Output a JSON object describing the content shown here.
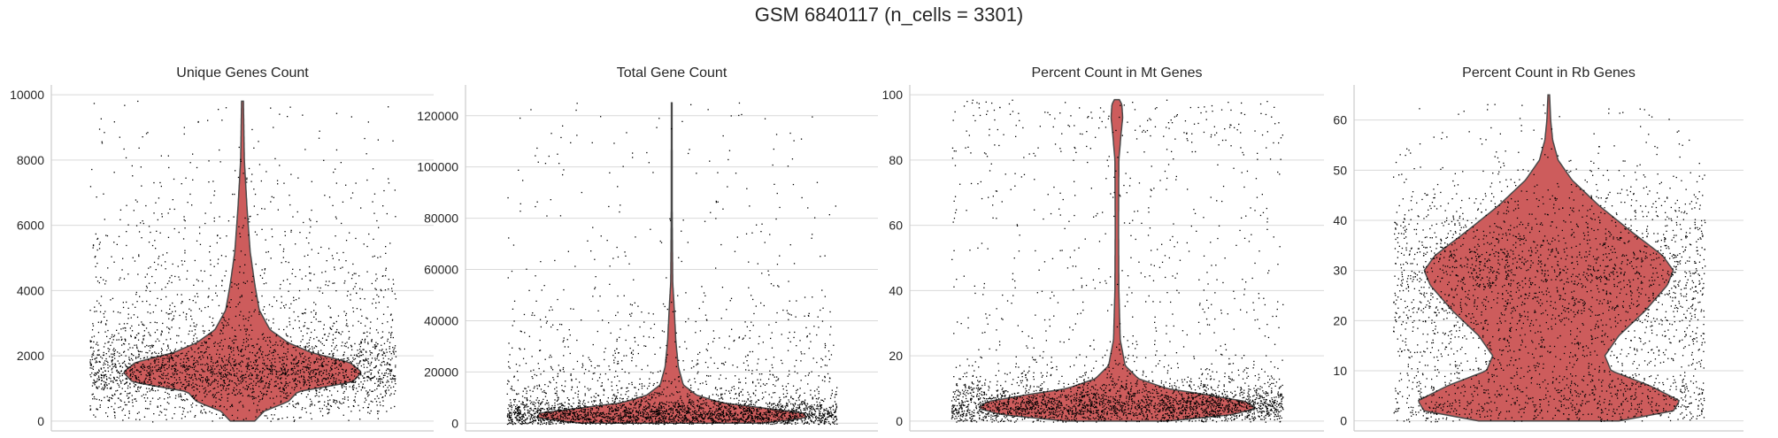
{
  "figure": {
    "title": "GSM 6840117 (n_cells = 3301)"
  },
  "colors": {
    "violin_fill": "#cd5c5c",
    "violin_edge": "#4a4a4a",
    "points": "#000000",
    "grid": "#d9d9d9",
    "axis": "#cccccc",
    "text": "#262626"
  },
  "chart_data": [
    {
      "type": "violin",
      "title": "Unique Genes Count",
      "xlabel": "",
      "ylabel": "",
      "ylim": [
        -300,
        10300
      ],
      "yticks": [
        0,
        2000,
        4000,
        6000,
        8000,
        10000
      ],
      "grid": "horizontal",
      "n_points": 3301,
      "jitter_points": true,
      "density_profile": [
        {
          "y": 0,
          "half_width": 0.08
        },
        {
          "y": 300,
          "half_width": 0.14
        },
        {
          "y": 600,
          "half_width": 0.3
        },
        {
          "y": 900,
          "half_width": 0.36
        },
        {
          "y": 1200,
          "half_width": 0.72
        },
        {
          "y": 1500,
          "half_width": 0.78
        },
        {
          "y": 1800,
          "half_width": 0.7
        },
        {
          "y": 2100,
          "half_width": 0.45
        },
        {
          "y": 2400,
          "half_width": 0.3
        },
        {
          "y": 2800,
          "half_width": 0.18
        },
        {
          "y": 3400,
          "half_width": 0.11
        },
        {
          "y": 4200,
          "half_width": 0.08
        },
        {
          "y": 5200,
          "half_width": 0.05
        },
        {
          "y": 6500,
          "half_width": 0.03
        },
        {
          "y": 8000,
          "half_width": 0.012
        },
        {
          "y": 9800,
          "half_width": 0.006
        }
      ]
    },
    {
      "type": "violin",
      "title": "Total Gene Count",
      "xlabel": "",
      "ylabel": "",
      "ylim": [
        -3000,
        132000
      ],
      "yticks": [
        0,
        20000,
        40000,
        60000,
        80000,
        100000,
        120000
      ],
      "grid": "horizontal",
      "n_points": 3301,
      "jitter_points": true,
      "density_profile": [
        {
          "y": 0,
          "half_width": 0.55
        },
        {
          "y": 2000,
          "half_width": 0.82
        },
        {
          "y": 4000,
          "half_width": 0.8
        },
        {
          "y": 6000,
          "half_width": 0.55
        },
        {
          "y": 8000,
          "half_width": 0.3
        },
        {
          "y": 11000,
          "half_width": 0.15
        },
        {
          "y": 15000,
          "half_width": 0.07
        },
        {
          "y": 22000,
          "half_width": 0.04
        },
        {
          "y": 32000,
          "half_width": 0.025
        },
        {
          "y": 45000,
          "half_width": 0.015
        },
        {
          "y": 55000,
          "half_width": 0.006
        },
        {
          "y": 80000,
          "half_width": 0.003
        },
        {
          "y": 125000,
          "half_width": 0.002
        }
      ]
    },
    {
      "type": "violin",
      "title": "Percent Count in Mt Genes",
      "xlabel": "",
      "ylabel": "",
      "ylim": [
        -3,
        103
      ],
      "yticks": [
        0,
        20,
        40,
        60,
        80,
        100
      ],
      "grid": "horizontal",
      "n_points": 3301,
      "jitter_points": true,
      "density_profile": [
        {
          "y": 0,
          "half_width": 0.3
        },
        {
          "y": 2,
          "half_width": 0.7
        },
        {
          "y": 4,
          "half_width": 0.84
        },
        {
          "y": 6,
          "half_width": 0.78
        },
        {
          "y": 8,
          "half_width": 0.55
        },
        {
          "y": 10,
          "half_width": 0.3
        },
        {
          "y": 13,
          "half_width": 0.13
        },
        {
          "y": 17,
          "half_width": 0.05
        },
        {
          "y": 25,
          "half_width": 0.02
        },
        {
          "y": 40,
          "half_width": 0.012
        },
        {
          "y": 60,
          "half_width": 0.01
        },
        {
          "y": 80,
          "half_width": 0.012
        },
        {
          "y": 88,
          "half_width": 0.025
        },
        {
          "y": 93,
          "half_width": 0.035
        },
        {
          "y": 97,
          "half_width": 0.03
        },
        {
          "y": 98.5,
          "half_width": 0.015
        }
      ]
    },
    {
      "type": "violin",
      "title": "Percent Count in Rb Genes",
      "xlabel": "",
      "ylabel": "",
      "ylim": [
        -2,
        67
      ],
      "yticks": [
        0,
        10,
        20,
        30,
        40,
        50,
        60
      ],
      "grid": "horizontal",
      "n_points": 3301,
      "jitter_points": true,
      "density_profile": [
        {
          "y": 0,
          "half_width": 0.45
        },
        {
          "y": 2,
          "half_width": 0.8
        },
        {
          "y": 4,
          "half_width": 0.84
        },
        {
          "y": 7,
          "half_width": 0.65
        },
        {
          "y": 10,
          "half_width": 0.4
        },
        {
          "y": 13,
          "half_width": 0.36
        },
        {
          "y": 17,
          "half_width": 0.45
        },
        {
          "y": 22,
          "half_width": 0.62
        },
        {
          "y": 27,
          "half_width": 0.76
        },
        {
          "y": 30,
          "half_width": 0.8
        },
        {
          "y": 33,
          "half_width": 0.73
        },
        {
          "y": 38,
          "half_width": 0.52
        },
        {
          "y": 43,
          "half_width": 0.32
        },
        {
          "y": 48,
          "half_width": 0.15
        },
        {
          "y": 52,
          "half_width": 0.06
        },
        {
          "y": 56,
          "half_width": 0.025
        },
        {
          "y": 60,
          "half_width": 0.012
        },
        {
          "y": 65,
          "half_width": 0.005
        }
      ]
    }
  ]
}
